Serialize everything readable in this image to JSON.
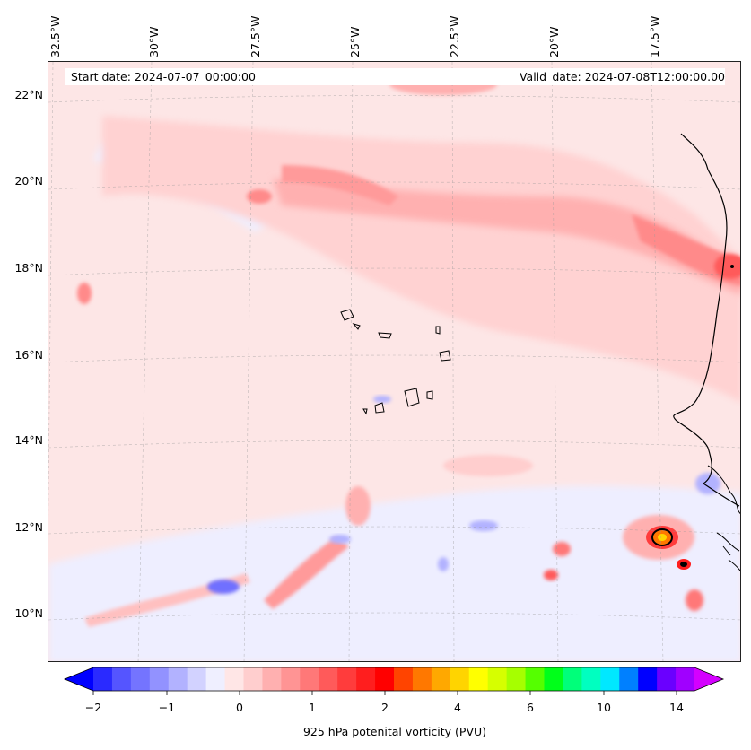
{
  "map": {
    "start_date": "Start date: 2024-07-07_00:00:00",
    "valid_date": "Valid_date: 2024-07-08T12:00:00.00",
    "longitude_labels": [
      "32.5°W",
      "30°W",
      "27.5°W",
      "25°W",
      "22.5°W",
      "20°W",
      "17.5°W"
    ],
    "latitude_labels": [
      "22°N",
      "20°N",
      "18°N",
      "16°N",
      "14°N",
      "12°N",
      "10°N"
    ],
    "projection": "conic",
    "gridlines": true,
    "coastlines": true
  },
  "colorbar": {
    "label": "925 hPa potenital vorticity (PVU)",
    "tick_labels": [
      "−2",
      "−1",
      "0",
      "1",
      "2",
      "4",
      "6",
      "10",
      "14"
    ],
    "extend": "both",
    "colors": [
      "#0000ff",
      "#2a2aff",
      "#5555ff",
      "#7474ff",
      "#9292ff",
      "#b2b2ff",
      "#d2d2ff",
      "#efefff",
      "#ffe6e6",
      "#ffcece",
      "#ffb0b0",
      "#ff9494",
      "#ff7878",
      "#ff5a5a",
      "#ff3c3c",
      "#ff1e1e",
      "#ff0000",
      "#ff4400",
      "#ff7800",
      "#ffa800",
      "#ffd400",
      "#ffff00",
      "#d6ff00",
      "#a6ff00",
      "#55ff00",
      "#00ff1a",
      "#00ff7a",
      "#00ffc0",
      "#00e8ff",
      "#0080ff",
      "#0000ff",
      "#6a00ff",
      "#a000ff",
      "#d400ff"
    ]
  }
}
